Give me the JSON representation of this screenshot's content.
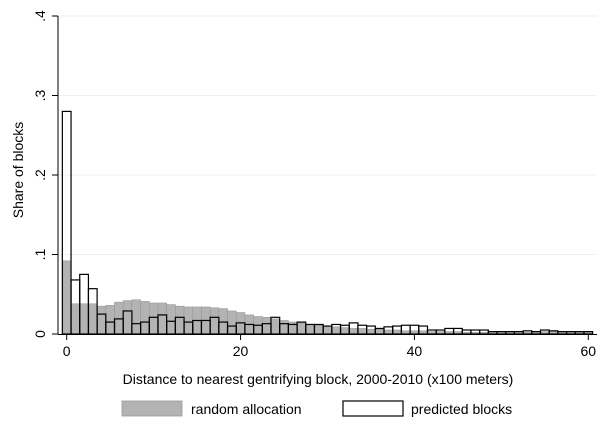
{
  "chart_data": {
    "type": "bar",
    "xlabel": "Distance to nearest gentrifying block, 2000-2010 (x100 meters)",
    "ylabel": "Share of blocks",
    "xlim": [
      -1,
      61
    ],
    "ylim": [
      0,
      0.4
    ],
    "x_ticks": [
      0,
      20,
      40,
      60
    ],
    "x_tick_labels": [
      "0",
      "20",
      "40",
      "60"
    ],
    "y_ticks": [
      0,
      0.1,
      0.2,
      0.3,
      0.4
    ],
    "y_tick_labels": [
      "0",
      ".1",
      ".2",
      ".3",
      ".4"
    ],
    "grid": true,
    "legend_position": "bottom",
    "bin_width": 1,
    "x": [
      0,
      1,
      2,
      3,
      4,
      5,
      6,
      7,
      8,
      9,
      10,
      11,
      12,
      13,
      14,
      15,
      16,
      17,
      18,
      19,
      20,
      21,
      22,
      23,
      24,
      25,
      26,
      27,
      28,
      29,
      30,
      31,
      32,
      33,
      34,
      35,
      36,
      37,
      38,
      39,
      40,
      41,
      42,
      43,
      44,
      45,
      46,
      47,
      48,
      49,
      50,
      51,
      52,
      53,
      54,
      55,
      56,
      57,
      58,
      59,
      60
    ],
    "series": [
      {
        "name": "random allocation",
        "color": "#b3b3b3",
        "edge_color": "#999999",
        "values": [
          0.092,
          0.038,
          0.038,
          0.038,
          0.035,
          0.036,
          0.04,
          0.042,
          0.043,
          0.041,
          0.039,
          0.039,
          0.037,
          0.035,
          0.034,
          0.034,
          0.034,
          0.033,
          0.032,
          0.029,
          0.027,
          0.024,
          0.022,
          0.021,
          0.019,
          0.017,
          0.015,
          0.014,
          0.012,
          0.011,
          0.01,
          0.009,
          0.008,
          0.007,
          0.007,
          0.006,
          0.006,
          0.005,
          0.005,
          0.004,
          0.004,
          0.004,
          0.003,
          0.003,
          0.003,
          0.003,
          0.002,
          0.002,
          0.002,
          0.002,
          0.002,
          0.002,
          0.002,
          0.002,
          0.002,
          0.003,
          0.003,
          0.002,
          0.002,
          0.002,
          0.002
        ]
      },
      {
        "name": "predicted blocks",
        "color": "#ffffff",
        "edge_color": "#000000",
        "values": [
          0.28,
          0.068,
          0.075,
          0.057,
          0.025,
          0.015,
          0.019,
          0.029,
          0.013,
          0.015,
          0.021,
          0.024,
          0.016,
          0.021,
          0.015,
          0.017,
          0.017,
          0.021,
          0.015,
          0.01,
          0.014,
          0.012,
          0.011,
          0.013,
          0.021,
          0.013,
          0.012,
          0.015,
          0.012,
          0.012,
          0.01,
          0.012,
          0.011,
          0.014,
          0.011,
          0.01,
          0.007,
          0.009,
          0.01,
          0.011,
          0.011,
          0.01,
          0.005,
          0.005,
          0.007,
          0.007,
          0.005,
          0.005,
          0.005,
          0.003,
          0.003,
          0.003,
          0.003,
          0.004,
          0.003,
          0.005,
          0.004,
          0.003,
          0.003,
          0.003,
          0.003
        ]
      }
    ]
  }
}
